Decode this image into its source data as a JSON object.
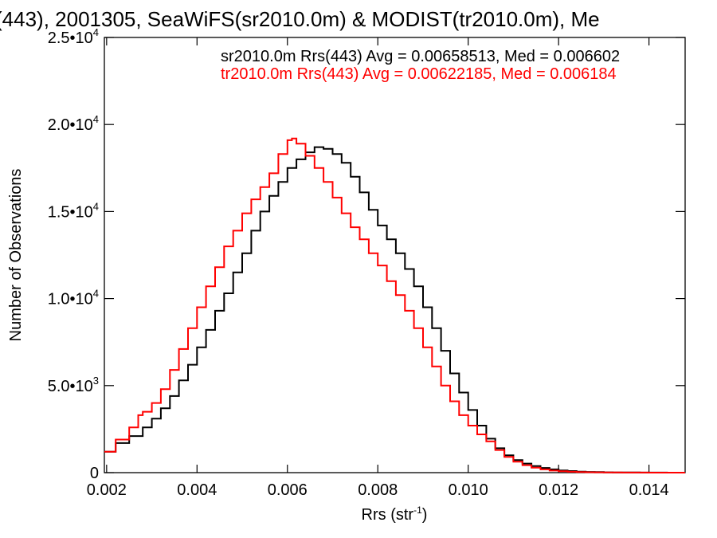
{
  "chart_data": {
    "type": "line",
    "title": "(443), 2001305, SeaWiFS(sr2010.0m) & MODIST(tr2010.0m), Me",
    "xlabel": "Rrs (str",
    "xlabel_exp": "-1",
    "xlabel_close": ")",
    "ylabel": "Number of Observations",
    "xlim": [
      0.00195,
      0.0148
    ],
    "ylim": [
      0,
      25000
    ],
    "grid": false,
    "step": true,
    "x_ticks": [
      {
        "value": 0.002,
        "label": "0.002"
      },
      {
        "value": 0.004,
        "label": "0.004"
      },
      {
        "value": 0.006,
        "label": "0.006"
      },
      {
        "value": 0.008,
        "label": "0.008"
      },
      {
        "value": 0.01,
        "label": "0.010"
      },
      {
        "value": 0.012,
        "label": "0.012"
      },
      {
        "value": 0.014,
        "label": "0.014"
      }
    ],
    "y_ticks": [
      {
        "value": 0,
        "mant": "0",
        "exp": ""
      },
      {
        "value": 5000,
        "mant": "5.0•10",
        "exp": "3"
      },
      {
        "value": 10000,
        "mant": "1.0•10",
        "exp": "4"
      },
      {
        "value": 15000,
        "mant": "1.5•10",
        "exp": "4"
      },
      {
        "value": 20000,
        "mant": "2.0•10",
        "exp": "4"
      },
      {
        "value": 25000,
        "mant": "2.5•10",
        "exp": "4"
      }
    ],
    "series": [
      {
        "name": "sr2010.0m Rrs(443)",
        "label": "sr2010.0m Rrs(443) Avg = 0.00658513, Med = 0.006602",
        "color": "#000000",
        "x": [
          0.00195,
          0.0022,
          0.0025,
          0.0028,
          0.003,
          0.0032,
          0.0034,
          0.0036,
          0.0038,
          0.004,
          0.0042,
          0.0044,
          0.0046,
          0.0048,
          0.005,
          0.0052,
          0.0054,
          0.0056,
          0.0058,
          0.006,
          0.0062,
          0.0064,
          0.0066,
          0.0068,
          0.007,
          0.0072,
          0.0074,
          0.0076,
          0.0078,
          0.008,
          0.0082,
          0.0084,
          0.0086,
          0.0088,
          0.009,
          0.0092,
          0.0094,
          0.0096,
          0.0098,
          0.01,
          0.0102,
          0.0104,
          0.0106,
          0.0108,
          0.011,
          0.0112,
          0.0114,
          0.0116,
          0.0118,
          0.012,
          0.0122,
          0.0124,
          0.0126,
          0.0128,
          0.013,
          0.0132,
          0.0134,
          0.0136,
          0.0138,
          0.014,
          0.0142,
          0.0144,
          0.0146,
          0.0148
        ],
        "y": [
          1200,
          1700,
          2100,
          2600,
          3100,
          3700,
          4400,
          5300,
          6200,
          7200,
          8200,
          9300,
          10300,
          11500,
          12600,
          13900,
          15000,
          15900,
          16700,
          17500,
          18000,
          18400,
          18700,
          18600,
          18300,
          17800,
          17000,
          16100,
          15100,
          14200,
          13400,
          12600,
          11700,
          10700,
          9500,
          8300,
          7000,
          5700,
          4600,
          3600,
          2700,
          1950,
          1400,
          1000,
          720,
          520,
          380,
          270,
          190,
          130,
          90,
          60,
          40,
          30,
          20,
          15,
          10,
          8,
          5,
          4,
          3,
          2,
          2,
          2
        ]
      },
      {
        "name": "tr2010.0m Rrs(443)",
        "label": "tr2010.0m Rrs(443) Avg = 0.00622185, Med = 0.006184",
        "color": "#ff0000",
        "x": [
          0.00195,
          0.0022,
          0.0025,
          0.0027,
          0.0028,
          0.003,
          0.0032,
          0.0034,
          0.0036,
          0.0038,
          0.004,
          0.0042,
          0.0044,
          0.0046,
          0.0048,
          0.005,
          0.0052,
          0.0054,
          0.0056,
          0.0058,
          0.006,
          0.0061,
          0.0062,
          0.0064,
          0.0066,
          0.0068,
          0.007,
          0.0072,
          0.0074,
          0.0076,
          0.0078,
          0.008,
          0.0082,
          0.0084,
          0.0086,
          0.0088,
          0.009,
          0.0092,
          0.0094,
          0.0096,
          0.0098,
          0.01,
          0.0102,
          0.0104,
          0.0106,
          0.0108,
          0.011,
          0.0112,
          0.0114,
          0.0116,
          0.0118,
          0.012,
          0.0122,
          0.0124,
          0.0126,
          0.0128,
          0.013,
          0.0132,
          0.0134,
          0.0136,
          0.0138,
          0.014,
          0.0142,
          0.0144,
          0.0146,
          0.0148
        ],
        "y": [
          1200,
          1900,
          2600,
          3300,
          3500,
          4000,
          4800,
          5900,
          7100,
          8300,
          9500,
          10700,
          11800,
          13000,
          13900,
          14900,
          15700,
          16400,
          17200,
          18300,
          19100,
          19200,
          18900,
          18200,
          17500,
          16700,
          15800,
          14900,
          14100,
          13400,
          12600,
          11900,
          11000,
          10200,
          9300,
          8300,
          7200,
          6100,
          5000,
          4100,
          3300,
          2700,
          2200,
          1800,
          1300,
          900,
          630,
          430,
          290,
          190,
          120,
          80,
          50,
          35,
          25,
          18,
          12,
          9,
          6,
          4,
          3,
          2,
          2,
          1,
          1,
          1
        ]
      }
    ]
  }
}
